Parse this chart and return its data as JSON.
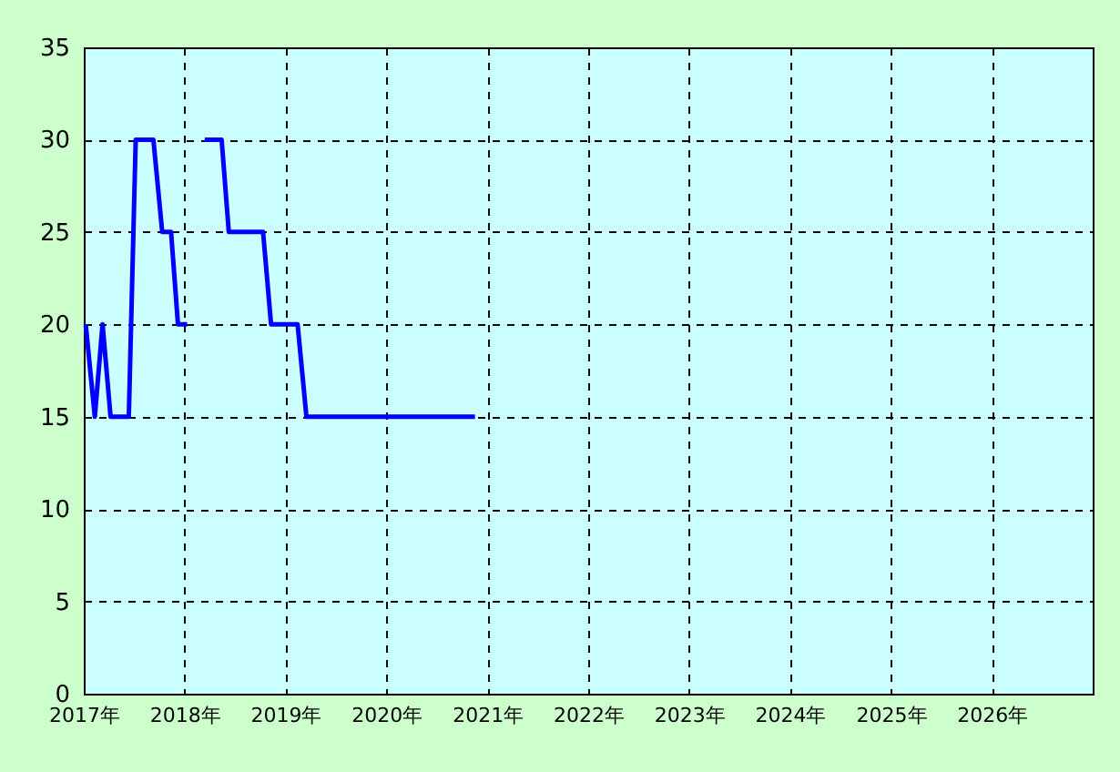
{
  "chart_data": {
    "type": "line",
    "x": [
      "2017-01-08",
      "2017-02-10",
      "2017-03-10",
      "2017-04-08",
      "2017-06-13",
      "2017-07-08",
      "2017-09-10",
      "2017-10-12",
      "2017-11-13",
      "2017-12-08",
      "2018-01-10",
      "2018-02-10",
      "2018-03-15",
      "2018-05-15",
      "2018-06-10",
      "2018-10-12",
      "2018-11-10",
      "2019-02-14",
      "2019-03-18",
      "2020-11-17"
    ],
    "series": [
      {
        "color": "#0000ff",
        "values": [
          20,
          15,
          20,
          15,
          15,
          30,
          30,
          25,
          25,
          20,
          20,
          null,
          30,
          30,
          25,
          25,
          20,
          20,
          15,
          15
        ]
      }
    ],
    "xlim": [
      "2017-01-01",
      "2027-01-01"
    ],
    "xticks": [
      {
        "value": "2017-01-01",
        "label": "2017年"
      },
      {
        "value": "2018-01-01",
        "label": "2018年"
      },
      {
        "value": "2019-01-01",
        "label": "2019年"
      },
      {
        "value": "2020-01-01",
        "label": "2020年"
      },
      {
        "value": "2021-01-01",
        "label": "2021年"
      },
      {
        "value": "2022-01-01",
        "label": "2022年"
      },
      {
        "value": "2023-01-01",
        "label": "2023年"
      },
      {
        "value": "2024-01-01",
        "label": "2024年"
      },
      {
        "value": "2025-01-01",
        "label": "2025年"
      },
      {
        "value": "2026-01-01",
        "label": "2026年"
      }
    ],
    "ylim": [
      0,
      35
    ],
    "yticks": [
      0,
      5,
      10,
      15,
      20,
      25,
      30,
      35
    ],
    "grid": true,
    "line_style": "solid",
    "marker": "none"
  }
}
